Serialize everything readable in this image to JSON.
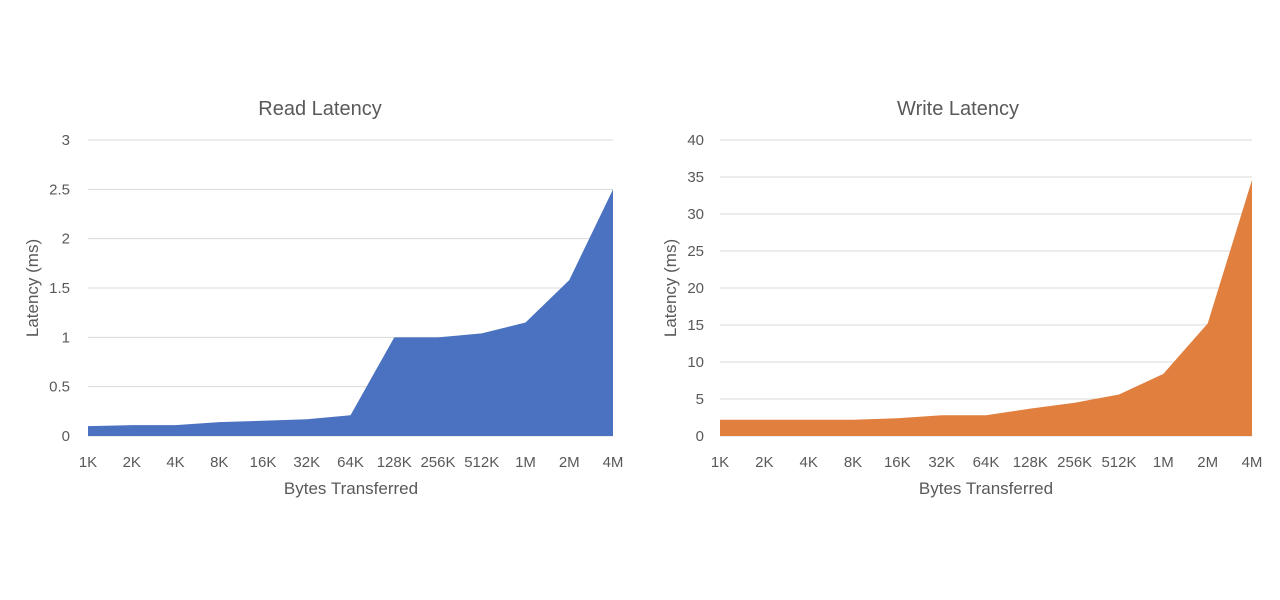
{
  "chart_data": [
    {
      "type": "area",
      "title": "Read Latency",
      "xlabel": "Bytes Transferred",
      "ylabel": "Latency (ms)",
      "categories": [
        "1K",
        "2K",
        "4K",
        "8K",
        "16K",
        "32K",
        "64K",
        "128K",
        "256K",
        "512K",
        "1M",
        "2M",
        "4M"
      ],
      "values": [
        0.1,
        0.11,
        0.11,
        0.14,
        0.155,
        0.17,
        0.21,
        1.0,
        1.0,
        1.04,
        1.15,
        1.58,
        2.5
      ],
      "yticks": [
        "0",
        "0.5",
        "1",
        "1.5",
        "2",
        "2.5",
        "3"
      ],
      "ylim": [
        0,
        3
      ],
      "grid": true,
      "color": "#4a72c0"
    },
    {
      "type": "area",
      "title": "Write Latency",
      "xlabel": "Bytes Transferred",
      "ylabel": "Latency (ms)",
      "categories": [
        "1K",
        "2K",
        "4K",
        "8K",
        "16K",
        "32K",
        "64K",
        "128K",
        "256K",
        "512K",
        "1M",
        "2M",
        "4M"
      ],
      "values": [
        2.2,
        2.2,
        2.2,
        2.2,
        2.4,
        2.8,
        2.8,
        3.7,
        4.5,
        5.6,
        8.4,
        15.2,
        34.6
      ],
      "yticks": [
        "0",
        "5",
        "10",
        "15",
        "20",
        "25",
        "30",
        "35",
        "40"
      ],
      "ylim": [
        0,
        40
      ],
      "grid": true,
      "color": "#e07f3e"
    }
  ]
}
